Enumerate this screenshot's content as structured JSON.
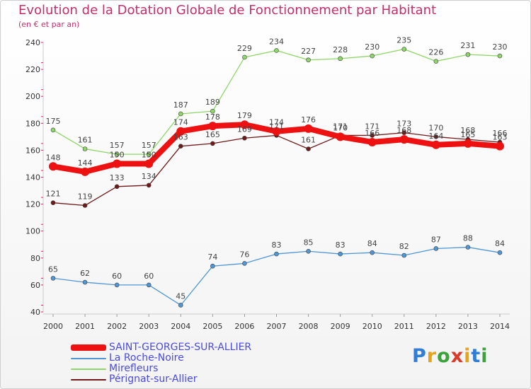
{
  "title": "Evolution de la Dotation Globale de Fonctionnement par Habitant",
  "subtitle": "(en € et par an)",
  "logo": "Proxiti",
  "chart_data": {
    "type": "line",
    "categories": [
      "2000",
      "2001",
      "2002",
      "2003",
      "2004",
      "2005",
      "2006",
      "2007",
      "2008",
      "2009",
      "2010",
      "2011",
      "2012",
      "2013",
      "2014"
    ],
    "ylim": [
      40,
      240
    ],
    "yticks": [
      40,
      60,
      80,
      100,
      120,
      140,
      160,
      180,
      200,
      220,
      240
    ],
    "grid": false,
    "legend_position": "bottom-left",
    "series": [
      {
        "name": "SAINT-GEORGES-SUR-ALLIER",
        "color": "#ee1111",
        "values": [
          148,
          144,
          150,
          150,
          174,
          178,
          179,
          174,
          176,
          170,
          166,
          168,
          164,
          165,
          163
        ]
      },
      {
        "name": "La Roche-Noire",
        "color": "#4f96d4",
        "values": [
          65,
          62,
          60,
          60,
          45,
          74,
          76,
          83,
          85,
          83,
          84,
          82,
          87,
          88,
          84
        ]
      },
      {
        "name": "Mirefleurs",
        "color": "#8fd66a",
        "values": [
          175,
          161,
          157,
          157,
          187,
          189,
          229,
          234,
          227,
          228,
          230,
          235,
          226,
          231,
          230
        ]
      },
      {
        "name": "Pérignat-sur-Allier",
        "color": "#6e1a1a",
        "values": [
          121,
          119,
          133,
          134,
          163,
          165,
          169,
          171,
          161,
          171,
          171,
          173,
          170,
          168,
          166
        ]
      }
    ]
  }
}
